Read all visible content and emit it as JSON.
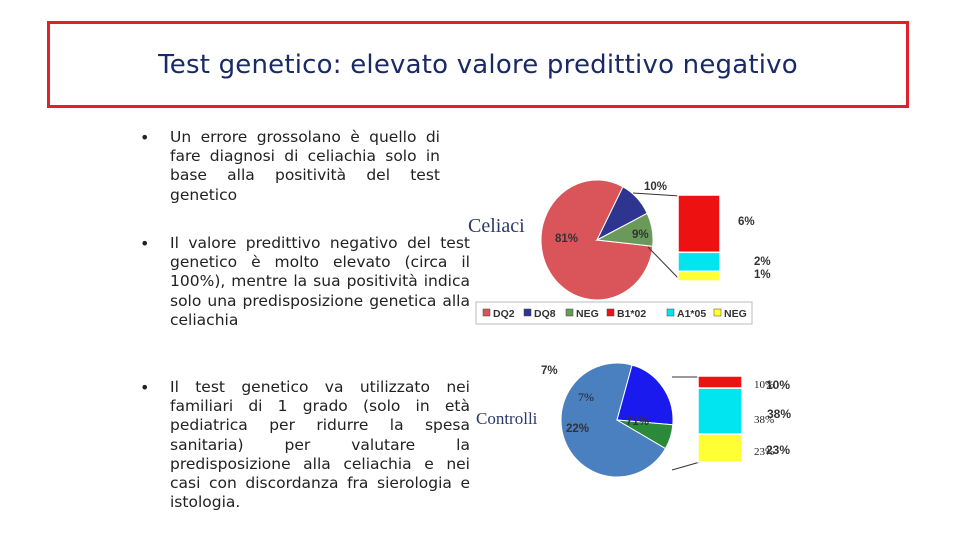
{
  "title": "Test genetico: elevato valore predittivo negativo",
  "bullets": [
    "Un errore grossolano è quello di fare diagnosi di celiachia solo in base alla positività del test genetico",
    "Il valore predittivo negativo del test genetico è molto elevato (circa il 100%), mentre la sua positività indica solo una predisposizione genetica alla celiachia",
    "Il test genetico va utilizzato nei familiari di 1 grado (solo in età pediatrica per ridurre la spesa sanitaria) per valutare la predisposizione alla celiachia e nei casi con discordanza fra sierologia e istologia."
  ],
  "colors": {
    "title_border": "#e0202a",
    "title_text": "#1a2a66",
    "DQ2": "#d9555a",
    "DQ8": "#2e3590",
    "NEG_pie": "#6a9a5a",
    "B1_02": "#ee1111",
    "A1_05": "#00e5f0",
    "NEG_bar": "#ffff33",
    "controlli_main": "#4a7fc0",
    "controlli_blue": "#1a1aee",
    "controlli_small": "#2a8a3a"
  },
  "chart_data": [
    {
      "type": "pie",
      "title": "Celiaci",
      "slices": [
        {
          "label": "81%",
          "value": 81,
          "category": "DQ2"
        },
        {
          "label": "10%",
          "value": 10,
          "category": "DQ8"
        },
        {
          "label": "9%",
          "value": 9,
          "category": "NEG"
        }
      ],
      "breakdown_bar": [
        {
          "label": "6%",
          "value": 6,
          "category": "B1*02"
        },
        {
          "label": "2%",
          "value": 2,
          "category": "A1*05"
        },
        {
          "label": "1%",
          "value": 1,
          "category": "NEG"
        }
      ],
      "legend": [
        "DQ2",
        "DQ8",
        "NEG",
        "B1*02",
        "A1*05",
        "NEG"
      ],
      "legend_position": "bottom"
    },
    {
      "type": "pie",
      "title": "Controlli",
      "slices": [
        {
          "label": "71%",
          "value": 71
        },
        {
          "label": "22%",
          "value": 22
        },
        {
          "label": "7%",
          "value": 7
        }
      ],
      "inner_label": "7%",
      "breakdown_bar": [
        {
          "label": "10%",
          "value": 10
        },
        {
          "label": "38%",
          "value": 38
        },
        {
          "label": "23%",
          "value": 23
        }
      ],
      "overlap_labels": [
        "10%",
        "38%",
        "23%"
      ]
    }
  ]
}
